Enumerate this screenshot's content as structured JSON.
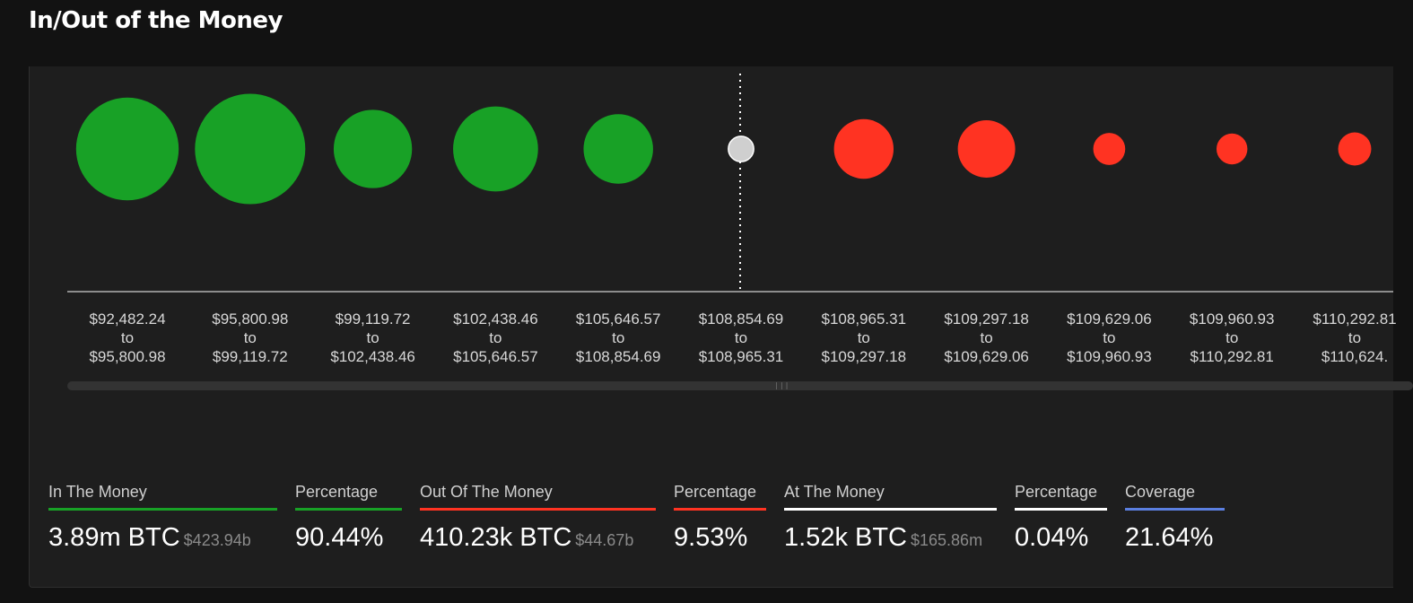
{
  "title": "In/Out of the Money",
  "colors": {
    "in_money": "#18a126",
    "out_money": "#ff3322",
    "at_money": "#cfcfcf",
    "coverage": "#5b7fe0",
    "axis": "#d0d0d0",
    "label": "#d8d8d8"
  },
  "chart_data": {
    "type": "scatter",
    "categories": [
      {
        "from": "$92,482.24",
        "to": "$95,800.98",
        "status": "in"
      },
      {
        "from": "$95,800.98",
        "to": "$99,119.72",
        "status": "in"
      },
      {
        "from": "$99,119.72",
        "to": "$102,438.46",
        "status": "in"
      },
      {
        "from": "$102,438.46",
        "to": "$105,646.57",
        "status": "in"
      },
      {
        "from": "$105,646.57",
        "to": "$108,854.69",
        "status": "in"
      },
      {
        "from": "$108,854.69",
        "to": "$108,965.31",
        "status": "at"
      },
      {
        "from": "$108,965.31",
        "to": "$109,297.18",
        "status": "out"
      },
      {
        "from": "$109,297.18",
        "to": "$109,629.06",
        "status": "out"
      },
      {
        "from": "$109,629.06",
        "to": "$109,960.93",
        "status": "out"
      },
      {
        "from": "$109,960.93",
        "to": "$110,292.81",
        "status": "out"
      },
      {
        "from": "$110,292.81",
        "to": "$110,624.",
        "status": "out"
      }
    ],
    "bubble_size": [
      0.93,
      1.0,
      0.71,
      0.77,
      0.63,
      0.23,
      0.54,
      0.52,
      0.29,
      0.28,
      0.3
    ],
    "connector": "to",
    "current_price_marker_index": 5
  },
  "stats": [
    {
      "label": "In The Money",
      "value": "3.89m BTC",
      "sub": "$423.94b",
      "color": "#18a126"
    },
    {
      "label": "Percentage",
      "value": "90.44%",
      "sub": "",
      "color": "#18a126"
    },
    {
      "label": "Out Of The Money",
      "value": "410.23k BTC",
      "sub": "$44.67b",
      "color": "#ff3322"
    },
    {
      "label": "Percentage",
      "value": "9.53%",
      "sub": "",
      "color": "#ff3322"
    },
    {
      "label": "At The Money",
      "value": "1.52k BTC",
      "sub": "$165.86m",
      "color": "#ffffff"
    },
    {
      "label": "Percentage",
      "value": "0.04%",
      "sub": "",
      "color": "#ffffff"
    },
    {
      "label": "Coverage",
      "value": "21.64%",
      "sub": "",
      "color": "#5b7fe0"
    }
  ]
}
